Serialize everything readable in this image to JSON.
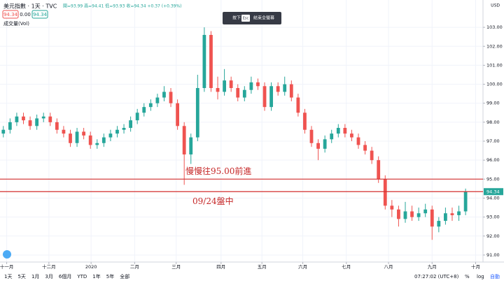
{
  "header": {
    "symbol": "美元指數 · 1天 · TVC",
    "ohlc": "開=93.99 高=94.41 低=93.93 收=94.34 +0.37 (+0.39%)",
    "sell": "94.34",
    "spread": "0.00",
    "buy": "94.34",
    "volume": "成交量(Vol)",
    "currency": "USD"
  },
  "notice": {
    "press": "按下",
    "key": "Esc",
    "action": "結束全螢幕"
  },
  "toolbar": {
    "ranges": [
      "1天",
      "5天",
      "1月",
      "3月",
      "6個月",
      "YTD",
      "1年",
      "5年",
      "全部"
    ],
    "time": "07:27:02 (UTC+8)",
    "options": [
      "%",
      "log",
      "自動"
    ]
  },
  "chart_data": {
    "type": "candlestick",
    "up_color": "#26a69a",
    "down_color": "#ef5350",
    "line_color": "#d32f2f",
    "ohlc": [
      [
        97.4,
        97.8,
        97.2,
        97.6
      ],
      [
        97.6,
        98.2,
        97.4,
        98.0
      ],
      [
        98.0,
        98.5,
        97.8,
        98.3
      ],
      [
        98.3,
        98.5,
        97.9,
        98.1
      ],
      [
        98.1,
        98.3,
        97.6,
        97.8
      ],
      [
        97.8,
        98.4,
        97.6,
        98.2
      ],
      [
        98.2,
        98.5,
        98.0,
        98.3
      ],
      [
        98.3,
        98.5,
        97.8,
        98.0
      ],
      [
        98.0,
        98.2,
        97.4,
        97.6
      ],
      [
        97.6,
        97.8,
        97.2,
        97.4
      ],
      [
        97.4,
        97.6,
        96.7,
        96.9
      ],
      [
        96.9,
        97.7,
        96.7,
        97.5
      ],
      [
        97.5,
        97.7,
        97.1,
        97.3
      ],
      [
        97.3,
        97.5,
        96.6,
        96.8
      ],
      [
        96.8,
        97.1,
        96.6,
        96.9
      ],
      [
        96.9,
        97.4,
        96.7,
        97.2
      ],
      [
        97.2,
        97.6,
        97.0,
        97.4
      ],
      [
        97.4,
        97.8,
        97.2,
        97.6
      ],
      [
        97.6,
        97.9,
        97.4,
        97.7
      ],
      [
        97.7,
        98.3,
        97.5,
        98.1
      ],
      [
        98.1,
        98.7,
        97.9,
        98.5
      ],
      [
        98.5,
        99.0,
        98.3,
        98.8
      ],
      [
        98.8,
        99.2,
        98.6,
        99.0
      ],
      [
        99.0,
        99.5,
        98.8,
        99.3
      ],
      [
        99.3,
        99.9,
        99.1,
        99.6
      ],
      [
        99.6,
        99.8,
        98.8,
        99.0
      ],
      [
        99.0,
        99.2,
        97.6,
        97.8
      ],
      [
        97.8,
        98.0,
        94.7,
        96.3
      ],
      [
        96.3,
        97.4,
        95.8,
        97.2
      ],
      [
        97.2,
        100.5,
        97.0,
        99.8
      ],
      [
        99.8,
        103.0,
        99.6,
        102.6
      ],
      [
        102.6,
        102.8,
        99.6,
        99.8
      ],
      [
        99.8,
        100.4,
        99.2,
        99.6
      ],
      [
        99.6,
        100.8,
        99.4,
        100.2
      ],
      [
        100.2,
        100.4,
        99.6,
        99.8
      ],
      [
        99.8,
        100.0,
        99.1,
        99.3
      ],
      [
        99.3,
        99.9,
        99.1,
        99.7
      ],
      [
        99.7,
        100.4,
        99.5,
        100.1
      ],
      [
        100.1,
        100.3,
        99.7,
        99.9
      ],
      [
        99.9,
        100.1,
        98.6,
        98.8
      ],
      [
        98.8,
        100.1,
        98.6,
        99.9
      ],
      [
        99.9,
        100.1,
        99.4,
        99.6
      ],
      [
        99.6,
        100.4,
        99.4,
        100.0
      ],
      [
        100.0,
        100.2,
        99.1,
        99.3
      ],
      [
        99.3,
        99.5,
        98.3,
        98.5
      ],
      [
        98.5,
        98.7,
        97.4,
        97.6
      ],
      [
        97.6,
        97.8,
        96.7,
        96.9
      ],
      [
        96.9,
        97.1,
        96.0,
        96.6
      ],
      [
        96.6,
        97.3,
        96.4,
        97.1
      ],
      [
        97.1,
        97.6,
        96.9,
        97.4
      ],
      [
        97.4,
        97.9,
        97.2,
        97.7
      ],
      [
        97.7,
        97.9,
        97.2,
        97.4
      ],
      [
        97.4,
        97.6,
        97.0,
        97.2
      ],
      [
        97.2,
        97.4,
        96.6,
        96.8
      ],
      [
        96.8,
        97.0,
        96.3,
        96.5
      ],
      [
        96.5,
        96.7,
        95.8,
        96.0
      ],
      [
        96.0,
        96.2,
        94.8,
        95.0
      ],
      [
        95.0,
        95.2,
        93.4,
        93.6
      ],
      [
        93.6,
        93.9,
        93.0,
        93.4
      ],
      [
        93.4,
        93.6,
        92.5,
        92.9
      ],
      [
        92.9,
        93.8,
        92.7,
        93.3
      ],
      [
        93.3,
        93.6,
        92.8,
        93.0
      ],
      [
        93.0,
        93.5,
        92.8,
        93.2
      ],
      [
        93.2,
        93.7,
        93.0,
        93.4
      ],
      [
        93.4,
        93.6,
        91.8,
        92.5
      ],
      [
        92.5,
        93.0,
        92.2,
        92.8
      ],
      [
        92.8,
        93.5,
        92.6,
        93.2
      ],
      [
        93.2,
        93.5,
        92.8,
        93.1
      ],
      [
        93.1,
        93.6,
        92.8,
        93.3
      ],
      [
        93.3,
        94.5,
        93.1,
        94.34
      ]
    ],
    "xlim": [
      -0.5,
      71.6
    ],
    "xticks": [
      {
        "value": 0.5,
        "label": "十一月"
      },
      {
        "value": 6.8,
        "label": "十二月"
      },
      {
        "value": 13.1,
        "label": "2020"
      },
      {
        "value": 19.6,
        "label": "二月"
      },
      {
        "value": 25.8,
        "label": "三月"
      },
      {
        "value": 32.5,
        "label": "四月"
      },
      {
        "value": 38.6,
        "label": "五月"
      },
      {
        "value": 44.7,
        "label": "六月"
      },
      {
        "value": 51.2,
        "label": "七月"
      },
      {
        "value": 57.5,
        "label": "八月"
      },
      {
        "value": 64,
        "label": "九月"
      },
      {
        "value": 70.5,
        "label": "十月"
      }
    ],
    "ylim": [
      90.63,
      104.44
    ],
    "yticks": [
      {
        "value": 91,
        "label": "91.00"
      },
      {
        "value": 92,
        "label": "92.00"
      },
      {
        "value": 93,
        "label": "93.00"
      },
      {
        "value": 94,
        "label": "94.00"
      },
      {
        "value": 95,
        "label": "95.00"
      },
      {
        "value": 96,
        "label": "96.00"
      },
      {
        "value": 97,
        "label": "97.00"
      },
      {
        "value": 98,
        "label": "98.00"
      },
      {
        "value": 99,
        "label": "99.00"
      },
      {
        "value": 100,
        "label": "100.00"
      },
      {
        "value": 101,
        "label": "101.00"
      },
      {
        "value": 102,
        "label": "102.00"
      },
      {
        "value": 103,
        "label": "103.00"
      }
    ],
    "hlines": [
      {
        "value": 95.0,
        "label": "慢慢往95.00前進"
      },
      {
        "value": 94.34,
        "label": "09/24盤中"
      }
    ],
    "last_price": 94.34,
    "grid": true
  }
}
